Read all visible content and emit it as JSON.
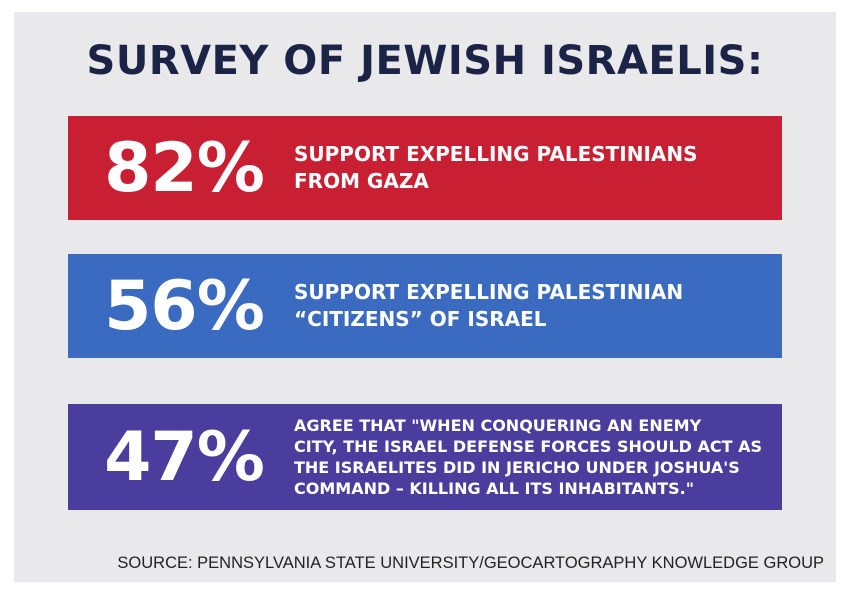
{
  "title": "SURVEY OF JEWISH ISRAELIS:",
  "stats": [
    {
      "percent": "82%",
      "text": "SUPPORT EXPELLING PALESTINIANS\nFROM GAZA",
      "color": "#c81f33"
    },
    {
      "percent": "56%",
      "text": "SUPPORT EXPELLING PALESTINIAN\n“CITIZENS” OF ISRAEL",
      "color": "#3a6bc0"
    },
    {
      "percent": "47%",
      "text": "AGREE THAT \"WHEN CONQUERING AN ENEMY\nCITY, THE ISRAEL DEFENSE FORCES SHOULD ACT AS\nTHE ISRAELITES DID IN JERICHO UNDER JOSHUA'S\nCOMMAND – KILLING ALL ITS INHABITANTS.\"",
      "color": "#4b3d9e"
    }
  ],
  "source": "SOURCE: PENNSYLVANIA STATE UNIVERSITY/GEOCARTOGRAPHY KNOWLEDGE GROUP",
  "colors": {
    "background": "#e9e9eb",
    "title": "#1b2346"
  }
}
